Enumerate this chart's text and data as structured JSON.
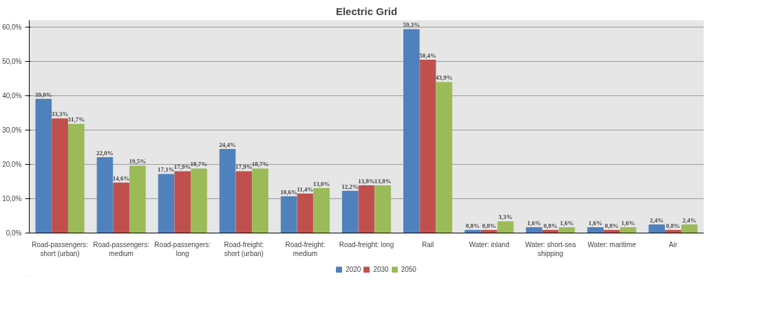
{
  "chart_data": {
    "type": "bar",
    "title": "Electric Grid",
    "categories": [
      "Road-passengers:\nshort (urban)",
      "Road-passengers:\nmedium",
      "Road-passengers:\nlong",
      "Road-freight:\nshort (urban)",
      "Road-freight:\nmedium",
      "Road-freight: long",
      "Rail",
      "Water: inland",
      "Water: short-sea\nshipping",
      "Water: maritime",
      "Air"
    ],
    "series": [
      {
        "name": "2020",
        "color": "#4f81bd",
        "values": [
          39.0,
          22.0,
          17.1,
          24.4,
          10.6,
          12.2,
          59.3,
          0.8,
          1.6,
          1.6,
          2.4
        ],
        "value_labels": [
          "39,0%",
          "22,0%",
          "17,1%",
          "24,4%",
          "10,6%",
          "12,2%",
          "59,3%",
          "0,8%",
          "1,6%",
          "1,6%",
          "2,4%"
        ]
      },
      {
        "name": "2030",
        "color": "#c0504d",
        "values": [
          33.3,
          14.6,
          17.9,
          17.9,
          11.4,
          13.8,
          50.4,
          0.8,
          0.8,
          0.8,
          0.8
        ],
        "value_labels": [
          "33,3%",
          "14,6%",
          "17,9%",
          "17,9%",
          "11,4%",
          "13,8%",
          "50,4%",
          "0,8%",
          "0,8%",
          "0,8%",
          "0,8%"
        ]
      },
      {
        "name": "2050",
        "color": "#9bbb59",
        "values": [
          31.7,
          19.5,
          18.7,
          18.7,
          13.0,
          13.8,
          43.9,
          3.3,
          1.6,
          1.6,
          2.4
        ],
        "value_labels": [
          "31,7%",
          "19,5%",
          "18,7%",
          "18,7%",
          "13,0%",
          "13,8%",
          "43,9%",
          "3,3%",
          "1,6%",
          "1,6%",
          "2,4%"
        ]
      }
    ],
    "ylim": [
      0,
      62
    ],
    "yticks": [
      {
        "value": 0,
        "label": "0,0%"
      },
      {
        "value": 10,
        "label": "10,0%"
      },
      {
        "value": 20,
        "label": "20,0%"
      },
      {
        "value": 30,
        "label": "30,0%"
      },
      {
        "value": 40,
        "label": "40,0%"
      },
      {
        "value": 50,
        "label": "50,0%"
      },
      {
        "value": 60,
        "label": "60,0%"
      }
    ],
    "grid": "y",
    "legend": "bottom"
  }
}
